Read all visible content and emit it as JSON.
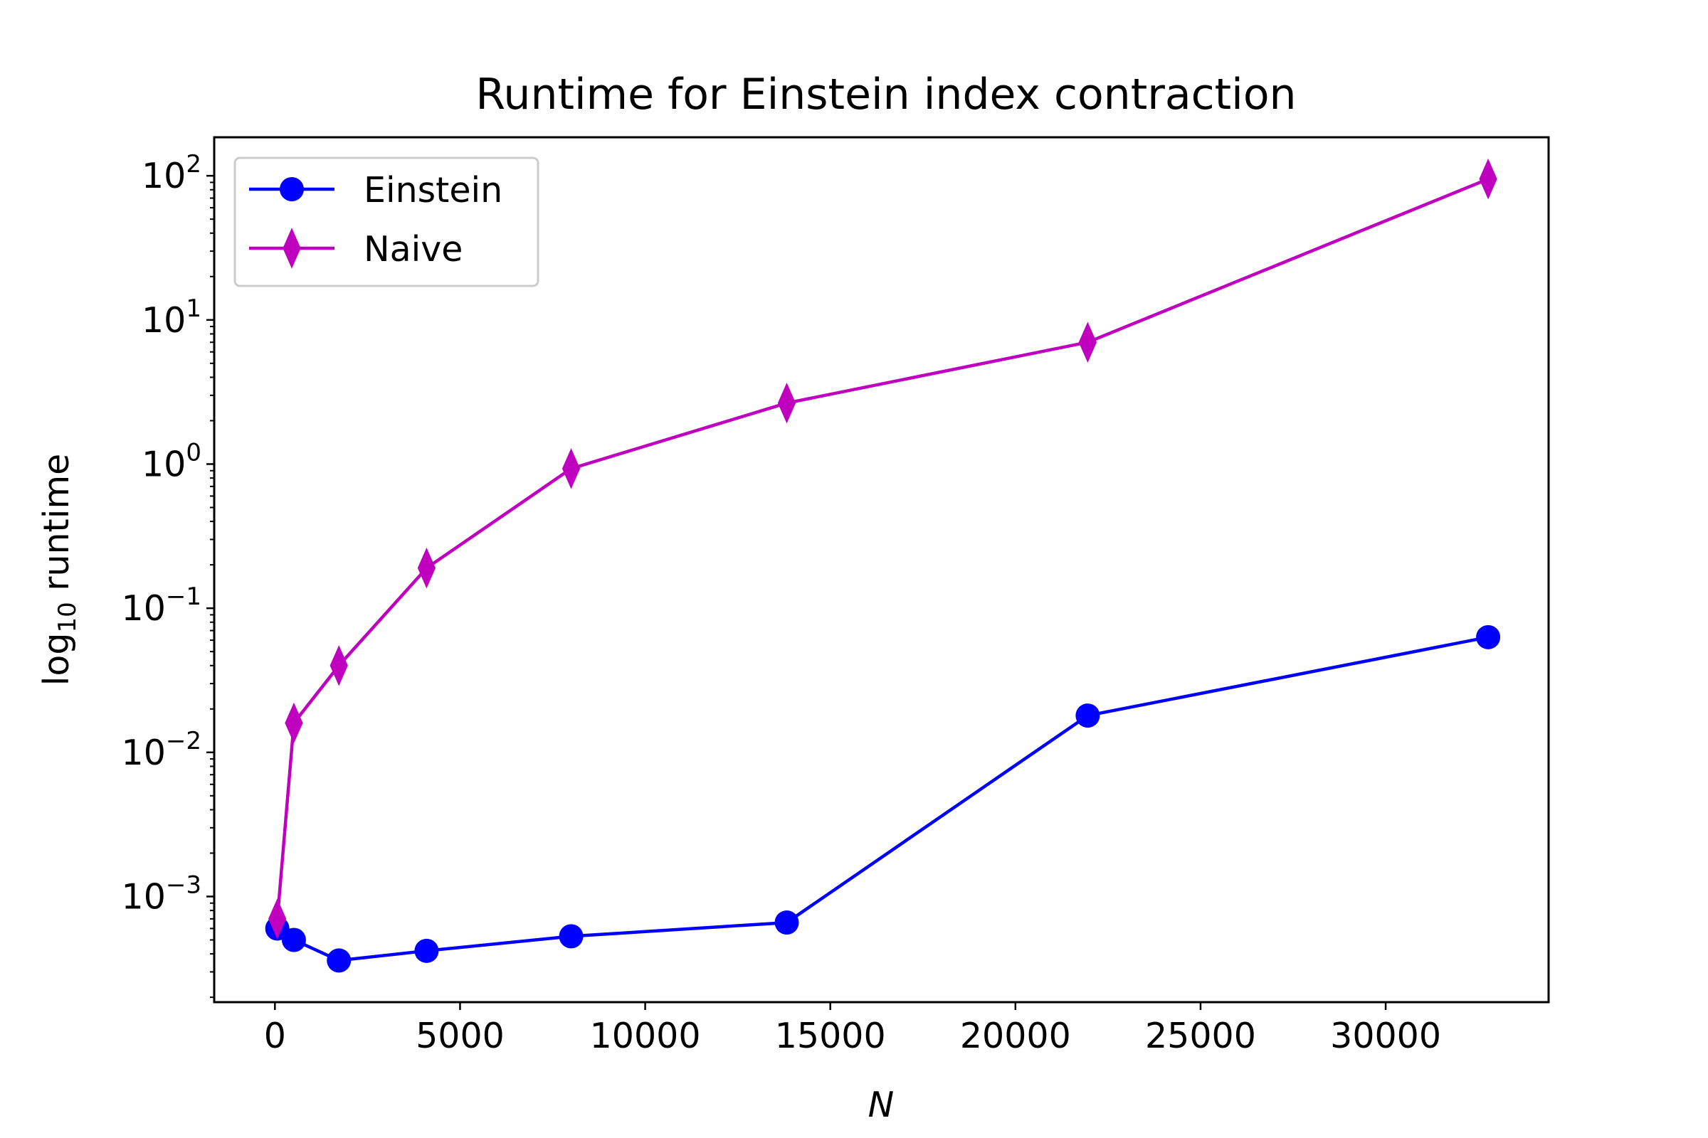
{
  "chart_data": {
    "type": "line",
    "title": "Runtime for Einstein index contraction",
    "xlabel": "N",
    "ylabel": "log10 runtime",
    "ylabel_base": "log",
    "ylabel_sub": "10",
    "ylabel_rest": " runtime",
    "x_scale": "linear",
    "y_scale": "log",
    "xlim": [
      -1640,
      34400
    ],
    "ylim": [
      0.000185,
      185
    ],
    "grid": false,
    "legend_position": "top-left",
    "x_ticks": [
      {
        "value": 0,
        "label": "0"
      },
      {
        "value": 5000,
        "label": "5000"
      },
      {
        "value": 10000,
        "label": "10000"
      },
      {
        "value": 15000,
        "label": "15000"
      },
      {
        "value": 20000,
        "label": "20000"
      },
      {
        "value": 25000,
        "label": "25000"
      },
      {
        "value": 30000,
        "label": "30000"
      }
    ],
    "y_ticks": [
      {
        "value": 0.001,
        "base": "10",
        "exp": "−3"
      },
      {
        "value": 0.01,
        "base": "10",
        "exp": "−2"
      },
      {
        "value": 0.1,
        "base": "10",
        "exp": "−1"
      },
      {
        "value": 1,
        "base": "10",
        "exp": "0"
      },
      {
        "value": 10,
        "base": "10",
        "exp": "1"
      },
      {
        "value": 100,
        "base": "10",
        "exp": "2"
      }
    ],
    "series": [
      {
        "name": "Einstein",
        "color": "#0000ff",
        "marker": "circle",
        "x": [
          64,
          512,
          1728,
          4096,
          8000,
          13824,
          21952,
          32768
        ],
        "y": [
          0.0006,
          0.0005,
          0.00036,
          0.00042,
          0.00053,
          0.00066,
          0.018,
          0.063
        ]
      },
      {
        "name": "Naive",
        "color": "#bf00bf",
        "marker": "thin-diamond",
        "x": [
          64,
          512,
          1728,
          4096,
          8000,
          13824,
          21952,
          32768
        ],
        "y": [
          0.0007,
          0.016,
          0.04,
          0.19,
          0.93,
          2.65,
          7.0,
          95
        ]
      }
    ]
  }
}
